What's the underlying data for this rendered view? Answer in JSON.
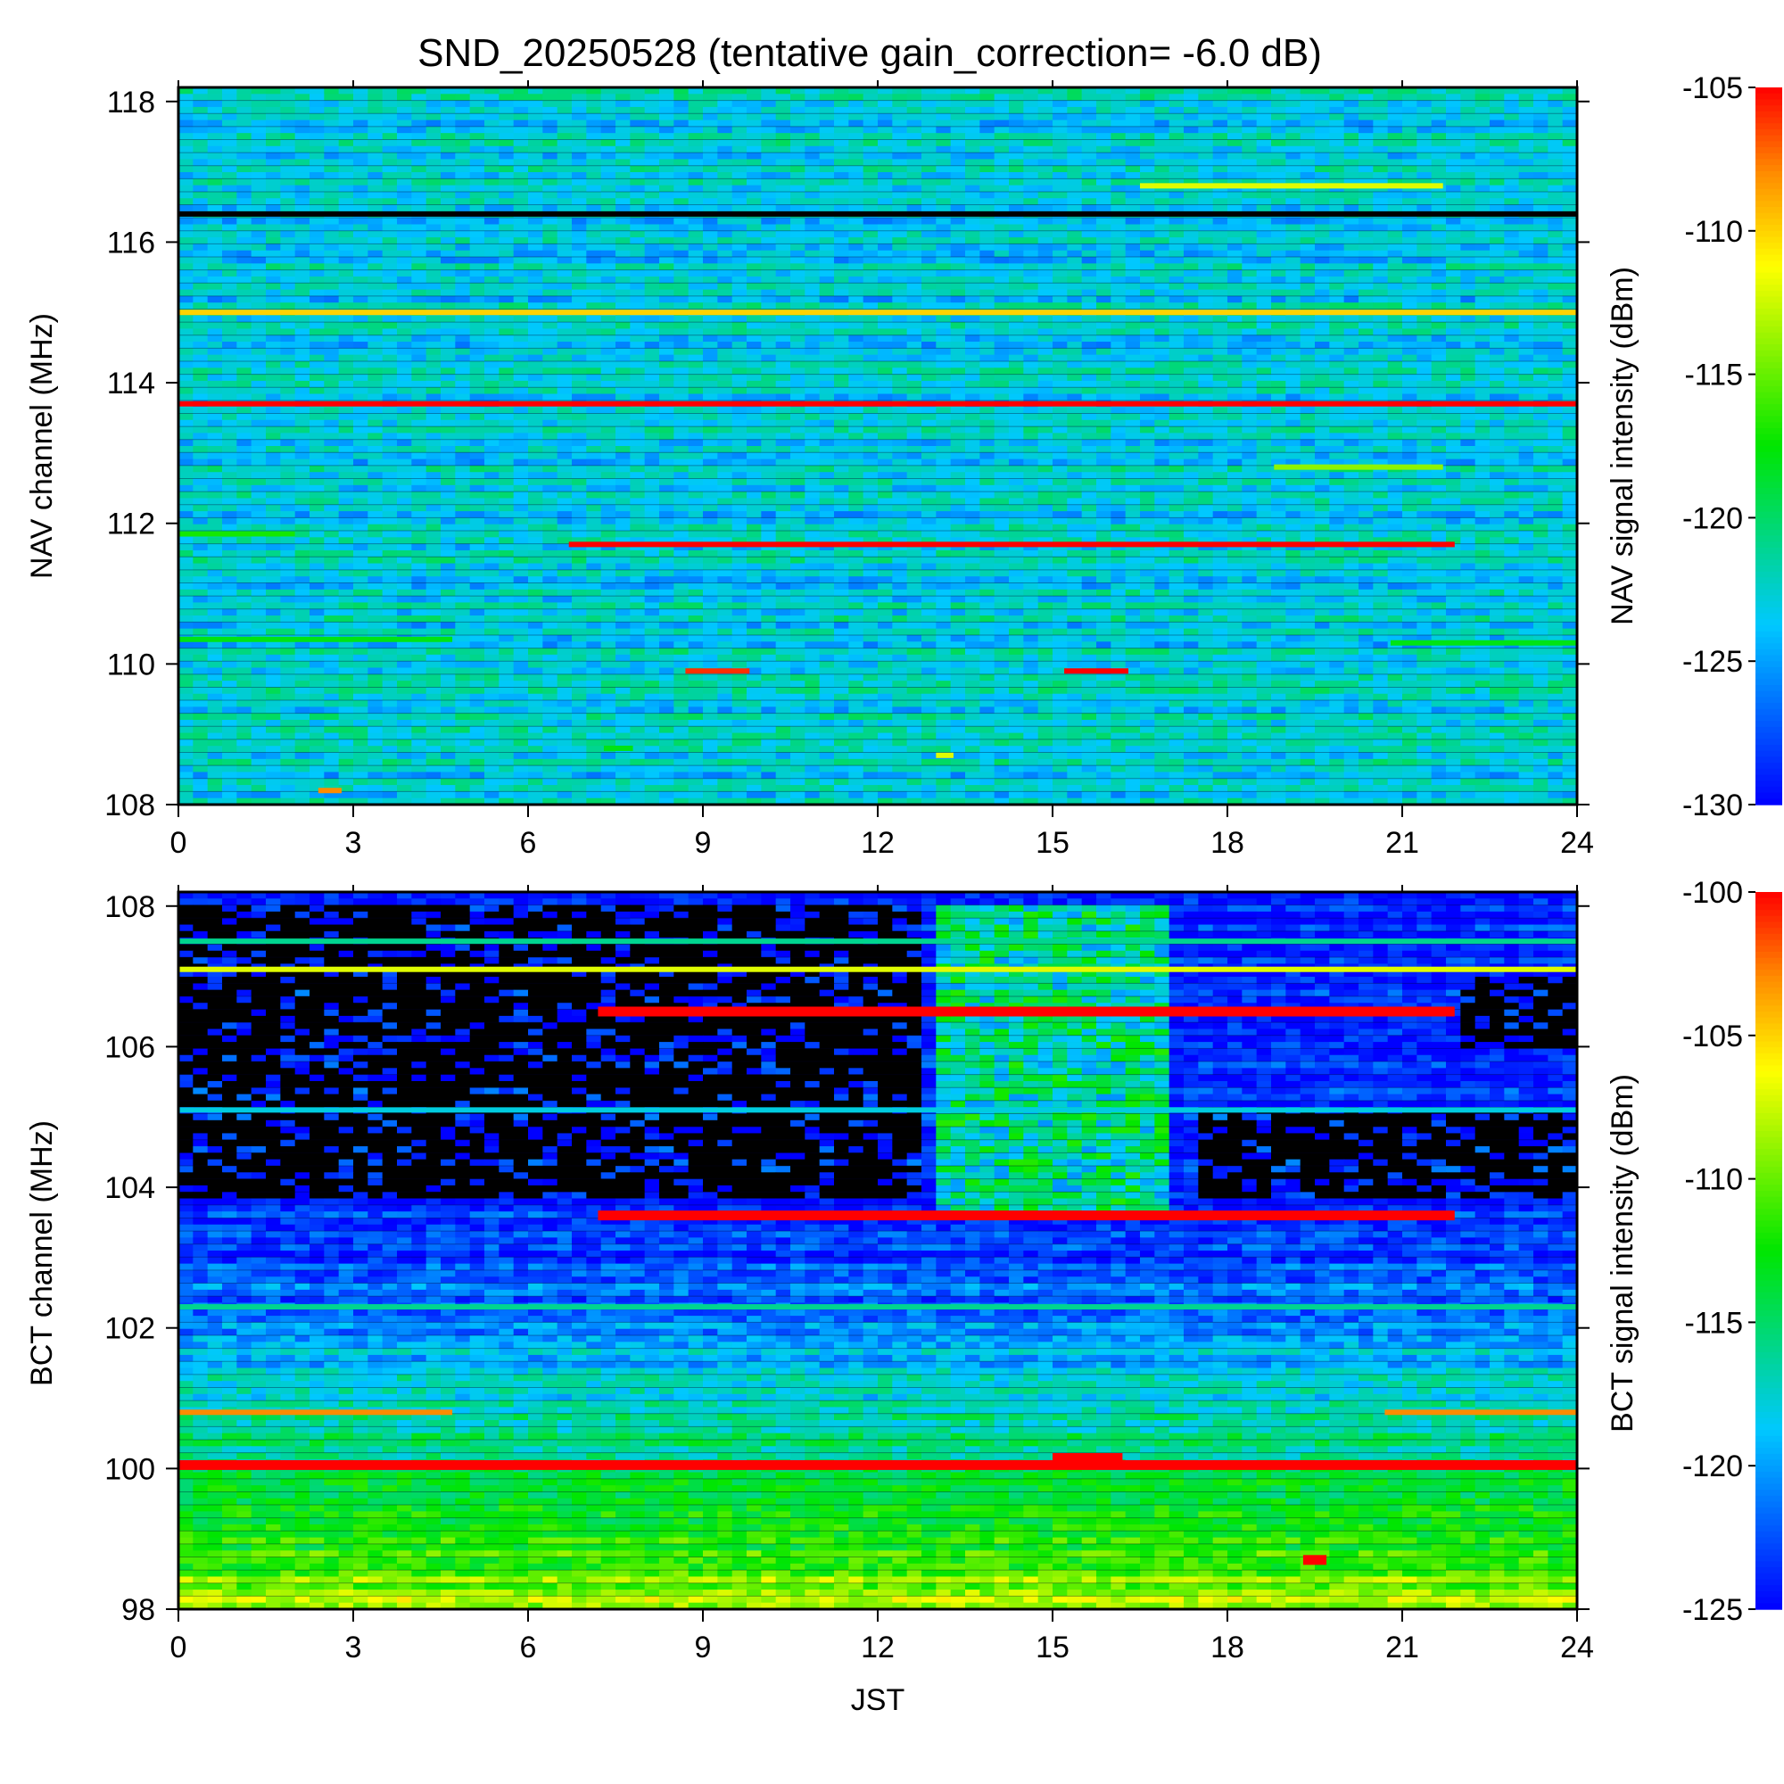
{
  "chart_data": [
    {
      "type": "heatmap",
      "title": "SND_20250528 (tentative gain_correction= -6.0 dB)",
      "xlabel": "",
      "ylabel": "NAV channel (MHz)",
      "colorbar_label": "NAV signal intensity (dBm)",
      "xlim": [
        0,
        24
      ],
      "ylim": [
        108,
        118.2
      ],
      "x_ticks": [
        "0",
        "3",
        "6",
        "9",
        "12",
        "15",
        "18",
        "21",
        "24"
      ],
      "x_tick_values": [
        0,
        3,
        6,
        9,
        12,
        15,
        18,
        21,
        24
      ],
      "y_ticks": [
        "108",
        "110",
        "112",
        "114",
        "116",
        "118"
      ],
      "y_tick_values": [
        108,
        110,
        112,
        114,
        116,
        118
      ],
      "color_range": [
        -130,
        -105
      ],
      "colorbar_ticks": [
        "-105",
        "-110",
        "-115",
        "-120",
        "-125",
        "-130"
      ],
      "colorbar_tick_values": [
        -105,
        -110,
        -115,
        -120,
        -125,
        -130
      ],
      "colormap": "rainbow (blue low, red high)",
      "background_level_dbm": -123,
      "features": [
        {
          "freq_mhz": 116.4,
          "start_jst": 0,
          "end_jst": 24,
          "level_dbm": "none (black)"
        },
        {
          "freq_mhz": 115.0,
          "start_jst": 0,
          "end_jst": 24,
          "level_dbm": -110
        },
        {
          "freq_mhz": 113.7,
          "start_jst": 0,
          "end_jst": 24,
          "level_dbm": -105
        },
        {
          "freq_mhz": 111.7,
          "start_jst": 6.7,
          "end_jst": 21.9,
          "level_dbm": -105
        },
        {
          "freq_mhz": 116.8,
          "start_jst": 16.5,
          "end_jst": 21.7,
          "level_dbm": -112
        },
        {
          "freq_mhz": 112.8,
          "start_jst": 18.8,
          "end_jst": 21.7,
          "level_dbm": -114
        },
        {
          "freq_mhz": 109.9,
          "start_jst": 8.7,
          "end_jst": 9.8,
          "level_dbm": -106
        },
        {
          "freq_mhz": 109.9,
          "start_jst": 15.2,
          "end_jst": 16.3,
          "level_dbm": -105
        },
        {
          "freq_mhz": 111.85,
          "start_jst": 0,
          "end_jst": 2.0,
          "level_dbm": -117
        },
        {
          "freq_mhz": 110.35,
          "start_jst": 0,
          "end_jst": 4.7,
          "level_dbm": -118
        },
        {
          "freq_mhz": 110.3,
          "start_jst": 20.8,
          "end_jst": 24,
          "level_dbm": -118
        },
        {
          "freq_mhz": 108.8,
          "start_jst": 7.3,
          "end_jst": 7.8,
          "level_dbm": -118
        },
        {
          "freq_mhz": 108.7,
          "start_jst": 13.0,
          "end_jst": 13.3,
          "level_dbm": -112
        },
        {
          "freq_mhz": 108.2,
          "start_jst": 2.4,
          "end_jst": 2.8,
          "level_dbm": -108
        }
      ]
    },
    {
      "type": "heatmap",
      "title": "",
      "xlabel": "JST",
      "ylabel": "BCT channel (MHz)",
      "colorbar_label": "BCT signal intensity (dBm)",
      "xlim": [
        0,
        24
      ],
      "ylim": [
        98,
        108.2
      ],
      "x_ticks": [
        "0",
        "3",
        "6",
        "9",
        "12",
        "15",
        "18",
        "21",
        "24"
      ],
      "x_tick_values": [
        0,
        3,
        6,
        9,
        12,
        15,
        18,
        21,
        24
      ],
      "y_ticks": [
        "98",
        "100",
        "102",
        "104",
        "106",
        "108"
      ],
      "y_tick_values": [
        98,
        100,
        102,
        104,
        106,
        108
      ],
      "color_range": [
        -125,
        -100
      ],
      "colorbar_ticks": [
        "-100",
        "-105",
        "-110",
        "-115",
        "-120",
        "-125"
      ],
      "colorbar_tick_values": [
        -100,
        -105,
        -110,
        -115,
        -120,
        -125
      ],
      "colormap": "rainbow (blue low, red high)",
      "background_profile": [
        {
          "freq_mhz": 98.0,
          "level_dbm": -108
        },
        {
          "freq_mhz": 99.0,
          "level_dbm": -112
        },
        {
          "freq_mhz": 100.0,
          "level_dbm": -115
        },
        {
          "freq_mhz": 101.0,
          "level_dbm": -117
        },
        {
          "freq_mhz": 101.7,
          "level_dbm": -119.5
        },
        {
          "freq_mhz": 102.4,
          "level_dbm": -121.5
        },
        {
          "freq_mhz": 103.2,
          "level_dbm": -123
        },
        {
          "freq_mhz": 103.8,
          "level_dbm": -124
        }
      ],
      "features": [
        {
          "freq_mhz": 100.05,
          "start_jst": 0,
          "end_jst": 24,
          "level_dbm": -100
        },
        {
          "freq_mhz": 106.5,
          "start_jst": 7.2,
          "end_jst": 21.9,
          "level_dbm": -100
        },
        {
          "freq_mhz": 103.6,
          "start_jst": 7.2,
          "end_jst": 21.9,
          "level_dbm": -100
        },
        {
          "freq_mhz": 100.8,
          "start_jst": 0,
          "end_jst": 4.7,
          "level_dbm": -103
        },
        {
          "freq_mhz": 100.8,
          "start_jst": 20.7,
          "end_jst": 24,
          "level_dbm": -103
        },
        {
          "freq_mhz": 107.1,
          "start_jst": 0,
          "end_jst": 24,
          "level_dbm": -107
        },
        {
          "freq_mhz": 107.5,
          "start_jst": 0,
          "end_jst": 24,
          "level_dbm": -116
        },
        {
          "freq_mhz": 105.1,
          "start_jst": 0,
          "end_jst": 24,
          "level_dbm": -118
        },
        {
          "freq_mhz": 102.3,
          "start_jst": 0,
          "end_jst": 24,
          "level_dbm": -116
        },
        {
          "freq_mhz": 98.7,
          "start_jst": 19.3,
          "end_jst": 19.7,
          "level_dbm": -100
        },
        {
          "freq_mhz": 100.15,
          "start_jst": 15.0,
          "end_jst": 16.2,
          "level_dbm": -100
        }
      ],
      "no_signal_regions": [
        {
          "freq_range_mhz": [
            103.8,
            108.0
          ],
          "start_jst": 0,
          "end_jst": 12.8
        },
        {
          "freq_range_mhz": [
            103.8,
            105.1
          ],
          "start_jst": 17.5,
          "end_jst": 24
        },
        {
          "freq_range_mhz": [
            106.0,
            107.0
          ],
          "start_jst": 22.0,
          "end_jst": 24
        }
      ],
      "elevated_regions": [
        {
          "freq_range_mhz": [
            103.7,
            108.0
          ],
          "start_jst": 12.9,
          "end_jst": 17.0,
          "level_dbm": -116
        }
      ]
    }
  ]
}
